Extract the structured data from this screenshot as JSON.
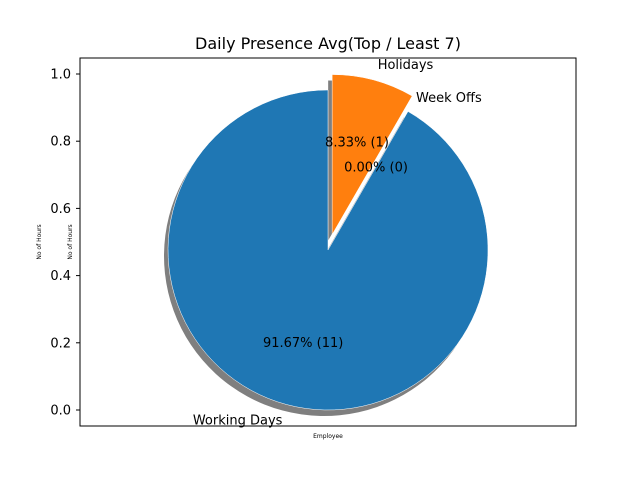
{
  "chart_data": {
    "type": "pie",
    "title": "Daily Presence Avg(Top / Least 7)",
    "xlabel": "Employee",
    "ylabel": "No of Hours",
    "ylabel_secondary": "No of Hours",
    "ylim": [
      0,
      1.0
    ],
    "yticks": [
      "0.0",
      "0.2",
      "0.4",
      "0.6",
      "0.8",
      "1.0"
    ],
    "slices": [
      {
        "label": "Working Days",
        "value": 11,
        "percent_label": "91.67%  (11)",
        "color": "#1f77b4",
        "exploded": false
      },
      {
        "label": "Week Offs",
        "value": 0,
        "percent_label": "0.00%  (0)",
        "color": "#2ca02c",
        "exploded": false
      },
      {
        "label": "Holidays",
        "value": 1,
        "percent_label": "8.33%  (1)",
        "color": "#ff7f0e",
        "exploded": true
      }
    ],
    "shadow": true,
    "start_angle_deg": 90,
    "legend": "none",
    "grid": false
  }
}
